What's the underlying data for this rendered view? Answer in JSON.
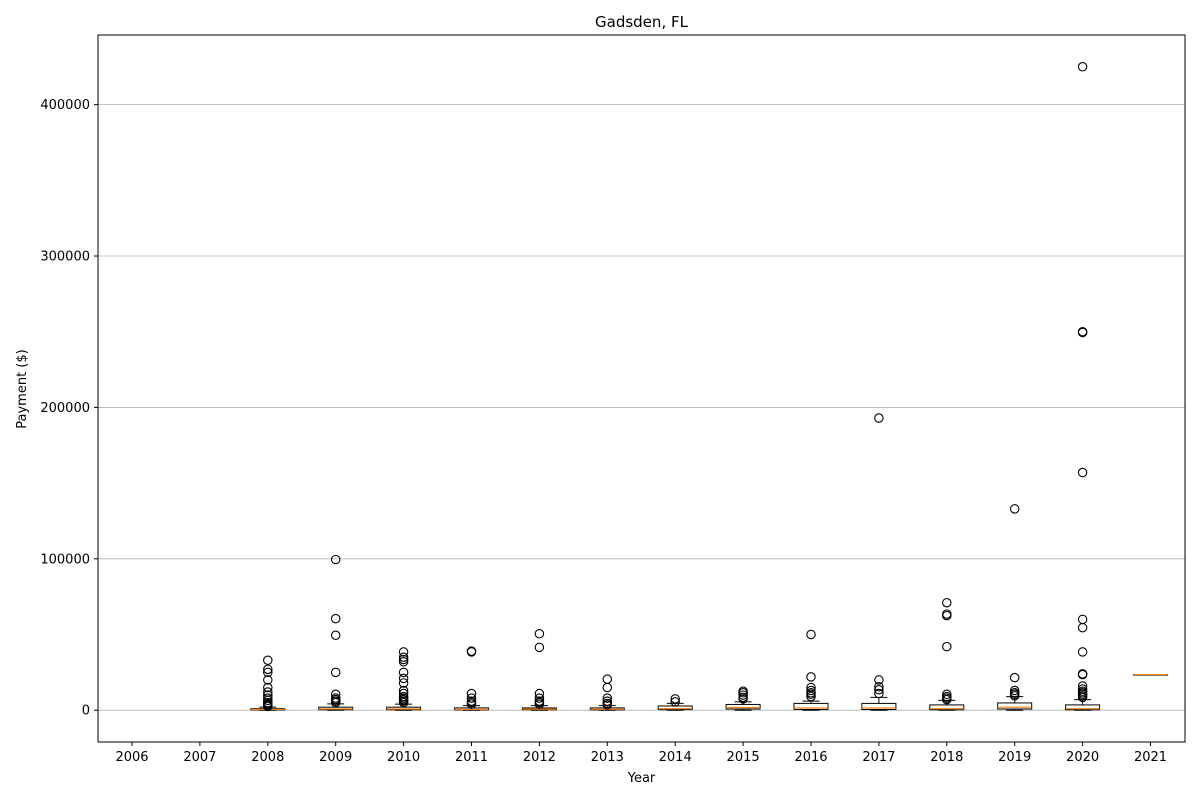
{
  "chart_data": {
    "type": "box",
    "title": "Gadsden, FL",
    "xlabel": "Year",
    "ylabel": "Payment ($)",
    "ylim": [
      -21000,
      446000
    ],
    "yticks": [
      0,
      100000,
      200000,
      300000,
      400000
    ],
    "ytick_labels": [
      "0",
      "100000",
      "200000",
      "300000",
      "400000"
    ],
    "grid": "y",
    "categories": [
      "2006",
      "2007",
      "2008",
      "2009",
      "2010",
      "2011",
      "2012",
      "2013",
      "2014",
      "2015",
      "2016",
      "2017",
      "2018",
      "2019",
      "2020",
      "2021"
    ],
    "boxes": [
      {
        "year": "2006",
        "q1": null,
        "median": null,
        "q3": null,
        "whislo": null,
        "whishi": null,
        "fliers": []
      },
      {
        "year": "2007",
        "q1": null,
        "median": null,
        "q3": null,
        "whislo": null,
        "whishi": null,
        "fliers": []
      },
      {
        "year": "2008",
        "q1": 200,
        "median": 500,
        "q3": 1000,
        "whislo": 0,
        "whishi": 2000,
        "fliers": [
          33000,
          27000,
          25000,
          20000,
          15000,
          12000,
          10000,
          8000,
          6500,
          5000,
          4000,
          3500,
          3000,
          2500
        ]
      },
      {
        "year": "2009",
        "q1": 300,
        "median": 800,
        "q3": 2000,
        "whislo": 0,
        "whishi": 4200,
        "fliers": [
          99500,
          60500,
          49500,
          25000,
          10500,
          8000,
          7000,
          6000,
          5000
        ]
      },
      {
        "year": "2010",
        "q1": 300,
        "median": 800,
        "q3": 2000,
        "whislo": 0,
        "whishi": 4000,
        "fliers": [
          38500,
          35000,
          33500,
          32000,
          25000,
          21000,
          18000,
          13000,
          11000,
          9000,
          8000,
          7000,
          6000,
          5000
        ]
      },
      {
        "year": "2011",
        "q1": 200,
        "median": 500,
        "q3": 1500,
        "whislo": 0,
        "whishi": 3000,
        "fliers": [
          39000,
          38500,
          11000,
          8000,
          6000,
          5000,
          4000
        ]
      },
      {
        "year": "2012",
        "q1": 300,
        "median": 700,
        "q3": 1500,
        "whislo": 0,
        "whishi": 3000,
        "fliers": [
          50500,
          41500,
          11000,
          8000,
          6000,
          5000,
          4000
        ]
      },
      {
        "year": "2013",
        "q1": 200,
        "median": 600,
        "q3": 1500,
        "whislo": 0,
        "whishi": 3000,
        "fliers": [
          20500,
          15000,
          8000,
          6000,
          4500,
          3500
        ]
      },
      {
        "year": "2014",
        "q1": 400,
        "median": 1000,
        "q3": 2800,
        "whislo": 0,
        "whishi": 4500,
        "fliers": [
          7500,
          5500
        ]
      },
      {
        "year": "2015",
        "q1": 800,
        "median": 1800,
        "q3": 3800,
        "whislo": 0,
        "whishi": 5500,
        "fliers": [
          12500,
          11500,
          10000,
          8500,
          7500
        ]
      },
      {
        "year": "2016",
        "q1": 500,
        "median": 1500,
        "q3": 4500,
        "whislo": 0,
        "whishi": 6000,
        "fliers": [
          50000,
          22000,
          15000,
          13000,
          11500,
          10500,
          9000
        ]
      },
      {
        "year": "2017",
        "q1": 500,
        "median": 1500,
        "q3": 4500,
        "whislo": 0,
        "whishi": 8500,
        "fliers": [
          193000,
          20000,
          15500,
          13500,
          11000
        ]
      },
      {
        "year": "2018",
        "q1": 300,
        "median": 1000,
        "q3": 3500,
        "whislo": 0,
        "whishi": 6500,
        "fliers": [
          71000,
          63500,
          62500,
          42000,
          10500,
          9000,
          8000,
          7000
        ]
      },
      {
        "year": "2019",
        "q1": 800,
        "median": 2000,
        "q3": 4800,
        "whislo": 0,
        "whishi": 9000,
        "fliers": [
          133000,
          21500,
          13000,
          11500,
          10500,
          9500
        ]
      },
      {
        "year": "2020",
        "q1": 300,
        "median": 1000,
        "q3": 3500,
        "whislo": 0,
        "whishi": 7000,
        "fliers": [
          425000,
          250000,
          249500,
          157000,
          60000,
          54500,
          38500,
          24000,
          23500,
          16000,
          14000,
          12500,
          11500,
          10500,
          9500,
          8500
        ]
      },
      {
        "year": "2021",
        "q1": 23500,
        "median": 23500,
        "q3": 23500,
        "whislo": 23500,
        "whishi": 23500,
        "fliers": []
      }
    ],
    "colors": {
      "box": "#000000",
      "median": "#ff7f0e",
      "grid": "#b0b0b0",
      "flier": "#000000"
    }
  }
}
